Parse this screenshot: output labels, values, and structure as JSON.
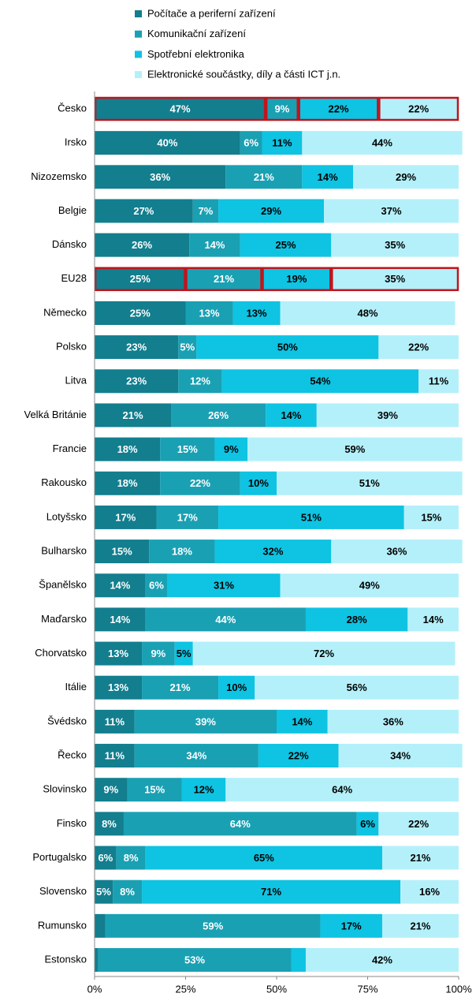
{
  "chart_data": {
    "type": "stacked-bar-horizontal",
    "categories": [
      "Česko",
      "Irsko",
      "Nizozemsko",
      "Belgie",
      "Dánsko",
      "EU28",
      "Německo",
      "Polsko",
      "Litva",
      "Velká Británie",
      "Francie",
      "Rakousko",
      "Lotyšsko",
      "Bulharsko",
      "Španělsko",
      "Maďarsko",
      "Chorvatsko",
      "Itálie",
      "Švédsko",
      "Řecko",
      "Slovinsko",
      "Finsko",
      "Portugalsko",
      "Slovensko",
      "Rumunsko",
      "Estonsko"
    ],
    "series": [
      {
        "name": "Počítače a periferní zařízení",
        "color": "#127e8e",
        "label_color": "#ffffff",
        "values": [
          47,
          40,
          36,
          27,
          26,
          25,
          25,
          23,
          23,
          21,
          18,
          18,
          17,
          15,
          14,
          14,
          13,
          13,
          11,
          11,
          9,
          8,
          6,
          5,
          3,
          1
        ],
        "value_labels": [
          "47%",
          "40%",
          "36%",
          "27%",
          "26%",
          "25%",
          "25%",
          "23%",
          "23%",
          "21%",
          "18%",
          "18%",
          "17%",
          "15%",
          "14%",
          "14%",
          "13%",
          "13%",
          "11%",
          "11%",
          "9%",
          "8%",
          "6%",
          "5%",
          null,
          null
        ]
      },
      {
        "name": "Komunikační zařízení",
        "color": "#1aa0b3",
        "label_color": "#ffffff",
        "values": [
          9,
          6,
          21,
          7,
          14,
          21,
          13,
          5,
          12,
          26,
          15,
          22,
          17,
          18,
          6,
          44,
          9,
          21,
          39,
          34,
          15,
          64,
          8,
          8,
          59,
          53
        ],
        "value_labels": [
          "9%",
          "6%",
          "21%",
          "7%",
          "14%",
          "21%",
          "13%",
          "5%",
          "12%",
          "26%",
          "15%",
          "22%",
          "17%",
          "18%",
          "6%",
          "44%",
          "9%",
          "21%",
          "39%",
          "34%",
          "15%",
          "64%",
          "8%",
          "8%",
          "59%",
          "53%"
        ]
      },
      {
        "name": "Spotřební elektronika",
        "color": "#0fc3e2",
        "label_color": "#000000",
        "values": [
          22,
          11,
          14,
          29,
          25,
          19,
          13,
          50,
          54,
          14,
          9,
          10,
          51,
          32,
          31,
          28,
          5,
          10,
          14,
          22,
          12,
          6,
          65,
          71,
          17,
          4
        ],
        "value_labels": [
          "22%",
          "11%",
          "14%",
          "29%",
          "25%",
          "19%",
          "13%",
          "50%",
          "54%",
          "14%",
          "9%",
          "10%",
          "51%",
          "32%",
          "31%",
          "28%",
          "5%",
          "10%",
          "14%",
          "22%",
          "12%",
          "6%",
          "65%",
          "71%",
          "17%",
          null
        ]
      },
      {
        "name": "Elektronické součástky, díly a části ICT j.n.",
        "color": "#b4f0fa",
        "label_color": "#000000",
        "values": [
          22,
          44,
          29,
          37,
          35,
          35,
          48,
          22,
          11,
          39,
          59,
          51,
          15,
          36,
          49,
          14,
          72,
          56,
          36,
          34,
          64,
          22,
          21,
          16,
          21,
          42
        ],
        "value_labels": [
          "22%",
          "44%",
          "29%",
          "37%",
          "35%",
          "35%",
          "48%",
          "22%",
          "11%",
          "39%",
          "59%",
          "51%",
          "15%",
          "36%",
          "49%",
          "14%",
          "72%",
          "56%",
          "36%",
          "34%",
          "64%",
          "22%",
          "21%",
          "16%",
          "21%",
          "42%"
        ]
      }
    ],
    "xlim": [
      0,
      100
    ],
    "xticks": [
      {
        "value": 0,
        "label": "0%"
      },
      {
        "value": 25,
        "label": "25%"
      },
      {
        "value": 50,
        "label": "50%"
      },
      {
        "value": 75,
        "label": "75%"
      },
      {
        "value": 100,
        "label": "100%"
      }
    ],
    "highlight": {
      "categories": [
        0,
        5
      ],
      "color": "#c0141c"
    },
    "legend": "top"
  }
}
